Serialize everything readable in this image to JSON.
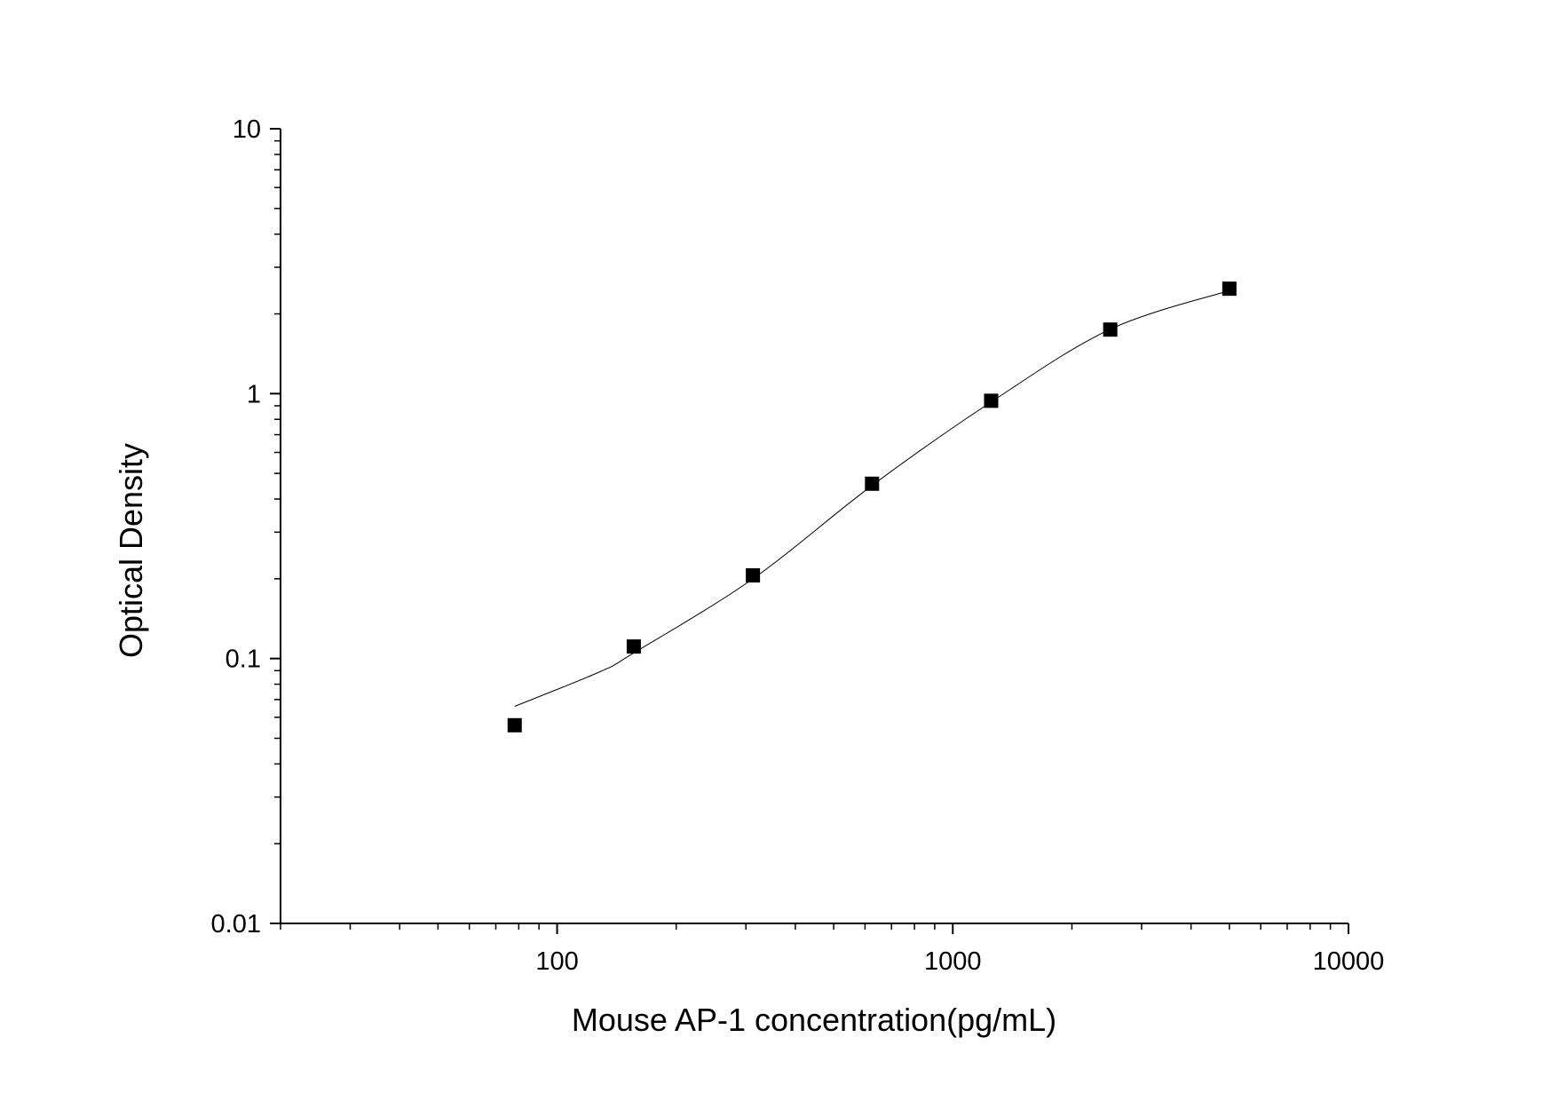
{
  "chart_data": {
    "type": "scatter",
    "title": "",
    "xlabel": "Mouse AP-1 concentration(pg/mL)",
    "ylabel": "Optical Density",
    "x_scale": "log",
    "y_scale": "log",
    "xlim": [
      20,
      10000
    ],
    "ylim": [
      0.01,
      10
    ],
    "x_tick_labels": [
      "100",
      "1000",
      "10000"
    ],
    "x_ticks": [
      100,
      1000,
      10000
    ],
    "y_tick_labels": [
      "0.01",
      "0.1",
      "1",
      "10"
    ],
    "y_ticks": [
      0.01,
      0.1,
      1,
      10
    ],
    "grid": false,
    "legend": "none",
    "marker": "square",
    "color": "#000000",
    "series": [
      {
        "x": [
          78.125,
          156.25,
          312.5,
          625,
          1250,
          2500,
          5000
        ],
        "y": [
          0.056,
          0.111,
          0.206,
          0.457,
          0.94,
          1.745,
          2.49
        ]
      }
    ],
    "fit_curve": {
      "x": [
        78.125,
        128,
        156.25,
        312.5,
        625,
        1250,
        2500,
        5000
      ],
      "y": [
        0.066,
        0.089,
        0.105,
        0.2,
        0.45,
        0.93,
        1.75,
        2.45
      ]
    }
  }
}
